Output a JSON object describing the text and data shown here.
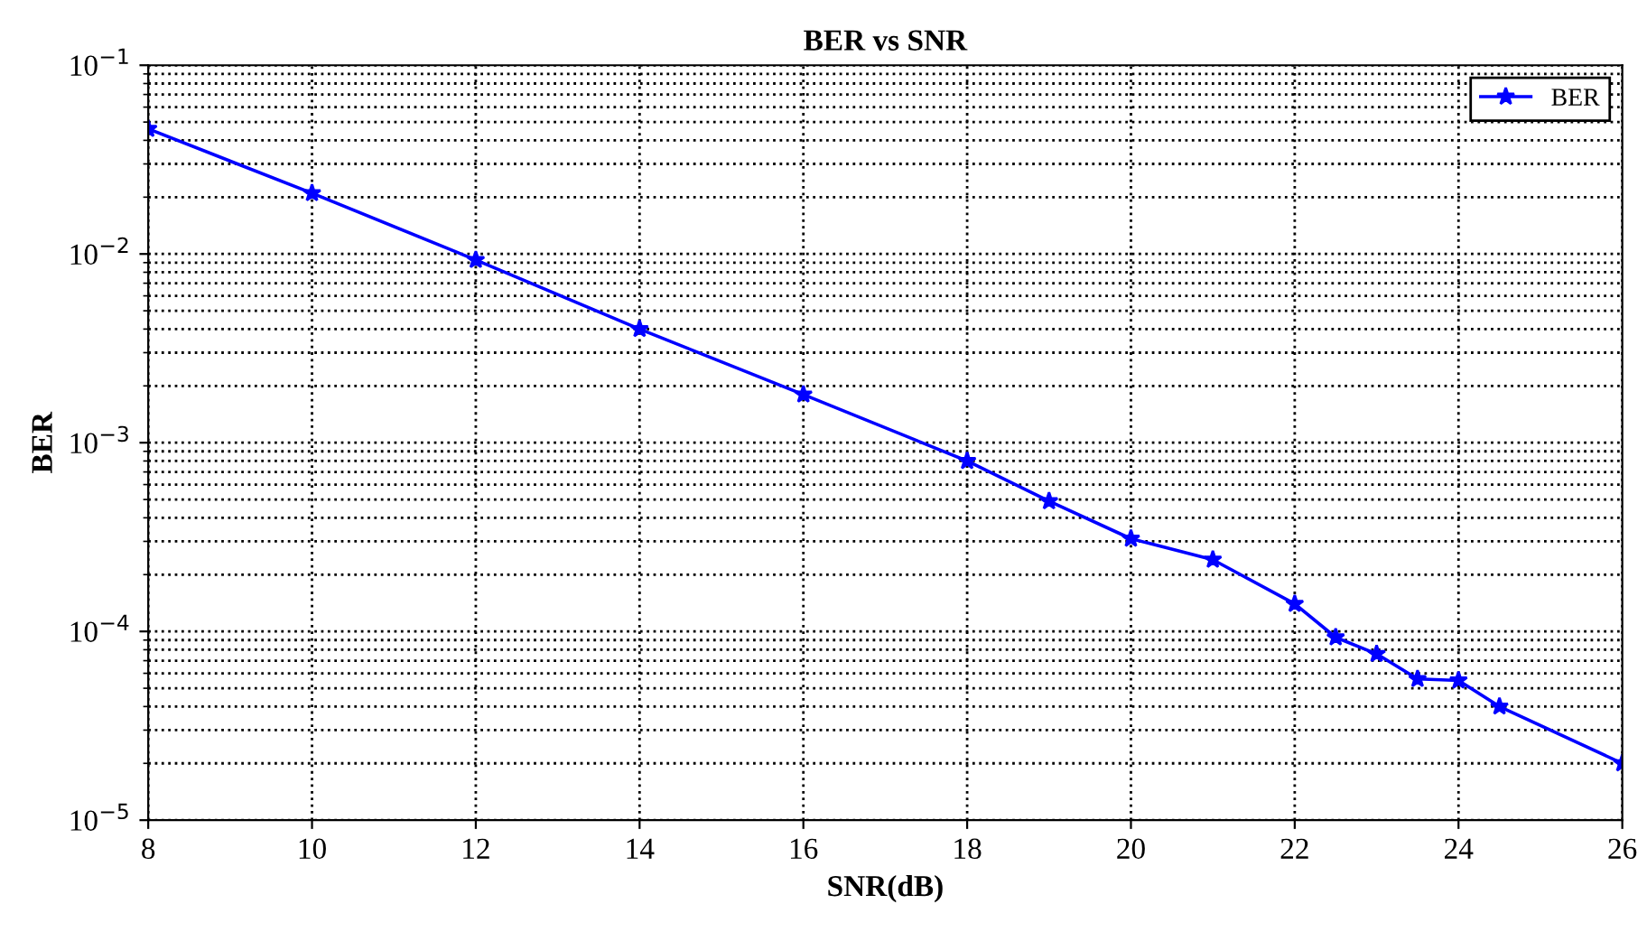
{
  "chart_data": {
    "type": "line",
    "title": "BER vs SNR",
    "xlabel": "SNR(dB)",
    "ylabel": "BER",
    "x": [
      8,
      10,
      12,
      14,
      16,
      18,
      19,
      20,
      21,
      22,
      22.5,
      23,
      23.5,
      24,
      24.5,
      26
    ],
    "series": [
      {
        "name": "BER",
        "color": "#0000ff",
        "values": [
          0.046,
          0.021,
          0.0093,
          0.004,
          0.0018,
          0.0008,
          0.00049,
          0.00031,
          0.00024,
          0.00014,
          9.3e-05,
          7.6e-05,
          5.6e-05,
          5.5e-05,
          4e-05,
          2e-05
        ]
      }
    ],
    "log": "y",
    "xlim": [
      8,
      26
    ],
    "xticks": [
      8,
      10,
      12,
      14,
      16,
      18,
      20,
      22,
      24,
      26
    ],
    "ylim": [
      1e-05,
      0.1
    ],
    "yticks": [
      {
        "value": 1e-05,
        "label": "10$^{−5}$"
      },
      {
        "value": 0.0001,
        "label": "10$^{−4}$"
      },
      {
        "value": 0.001,
        "label": "10$^{−3}$"
      },
      {
        "value": 0.01,
        "label": "10$^{−2}$"
      },
      {
        "value": 0.1,
        "label": "10$^{−1}$"
      }
    ],
    "grid": true,
    "legend": "top right",
    "marker": "star",
    "line_style": "solid"
  }
}
